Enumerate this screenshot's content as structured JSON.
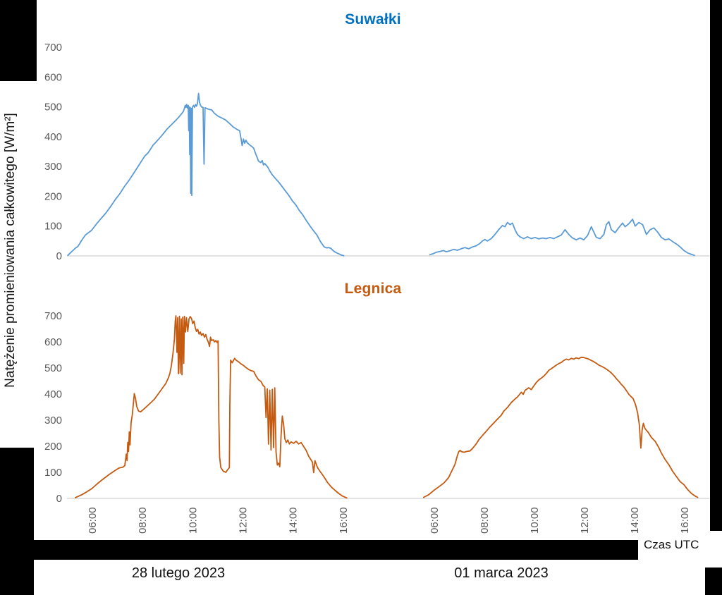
{
  "figure": {
    "ylabel": "Natężenie promieniowania całkowitego [W/m²]",
    "xlabel": "Czas UTC",
    "day_labels": {
      "left": "28 lutego 2023",
      "right": "01 marca 2023"
    },
    "colors": {
      "suwalki_title": "#0070C0",
      "suwalki_line": "#5B9BD5",
      "legnica_title": "#C55A11",
      "legnica_line": "#C55A11",
      "axis_text": "#595959",
      "baseline": "#D9D9D9"
    }
  },
  "chart_data": [
    {
      "type": "line",
      "title": "Suwałki",
      "ylabel": "Natężenie promieniowania całkowitego [W/m²]",
      "xlabel": "Czas UTC",
      "ylim": [
        0,
        700
      ],
      "y_ticks": [
        0,
        100,
        200,
        300,
        400,
        500,
        600,
        700
      ],
      "x_ticks": [
        "06:00",
        "08:00",
        "10:00",
        "12:00",
        "14:00",
        "16:00"
      ],
      "x_unit": "hours UTC",
      "grid": false,
      "legend": "none",
      "line_color": "#5B9BD5",
      "series": [
        {
          "name": "28 lutego 2023",
          "x": [
            5.05,
            5.2,
            5.35,
            5.44,
            5.5,
            5.6,
            5.75,
            6.0,
            6.2,
            6.4,
            6.56,
            6.75,
            6.95,
            7.12,
            7.3,
            7.5,
            7.69,
            7.85,
            8.0,
            8.12,
            8.25,
            8.45,
            8.6,
            8.81,
            9.0,
            9.2,
            9.37,
            9.5,
            9.65,
            9.7,
            9.73,
            9.76,
            9.79,
            9.82,
            9.85,
            9.87,
            9.89,
            9.91,
            9.93,
            9.95,
            9.97,
            9.99,
            10.02,
            10.06,
            10.1,
            10.14,
            10.18,
            10.22,
            10.26,
            10.3,
            10.34,
            10.38,
            10.44,
            10.48,
            10.52,
            10.6,
            10.7,
            10.78,
            10.9,
            11.05,
            11.2,
            11.34,
            11.5,
            11.65,
            11.78,
            11.9,
            12.0,
            12.05,
            12.1,
            12.15,
            12.2,
            12.3,
            12.4,
            12.46,
            12.55,
            12.6,
            12.65,
            12.74,
            12.8,
            12.85,
            12.9,
            13.02,
            13.1,
            13.2,
            13.3,
            13.45,
            13.58,
            13.72,
            13.86,
            14.0,
            14.14,
            14.28,
            14.42,
            14.56,
            14.7,
            14.84,
            14.98,
            15.12,
            15.26,
            15.35,
            15.45,
            15.54,
            15.62,
            15.72,
            15.82,
            15.95,
            16.05
          ],
          "y": [
            2,
            14,
            26,
            31,
            38,
            52,
            70,
            86,
            108,
            128,
            143,
            165,
            190,
            208,
            232,
            255,
            279,
            300,
            320,
            335,
            346,
            372,
            385,
            405,
            425,
            442,
            456,
            468,
            484,
            495,
            505,
            498,
            508,
            496,
            505,
            420,
            500,
            340,
            498,
            210,
            495,
            203,
            500,
            505,
            498,
            508,
            502,
            512,
            545,
            515,
            505,
            500,
            498,
            308,
            497,
            494,
            491,
            490,
            478,
            468,
            462,
            456,
            444,
            432,
            425,
            420,
            370,
            392,
            378,
            388,
            380,
            372,
            366,
            361,
            340,
            330,
            318,
            313,
            320,
            305,
            310,
            298,
            285,
            272,
            262,
            248,
            234,
            218,
            203,
            185,
            171,
            152,
            137,
            118,
            101,
            85,
            70,
            48,
            31,
            27,
            28,
            25,
            18,
            12,
            8,
            3,
            1
          ]
        },
        {
          "name": "01 marca 2023",
          "x": [
            5.85,
            6.0,
            6.1,
            6.25,
            6.4,
            6.5,
            6.65,
            6.8,
            6.95,
            7.1,
            7.25,
            7.4,
            7.55,
            7.7,
            7.85,
            7.95,
            8.05,
            8.15,
            8.3,
            8.45,
            8.6,
            8.75,
            8.85,
            8.95,
            9.05,
            9.15,
            9.25,
            9.35,
            9.45,
            9.6,
            9.75,
            9.9,
            10.05,
            10.2,
            10.35,
            10.5,
            10.65,
            10.8,
            10.95,
            11.1,
            11.25,
            11.4,
            11.55,
            11.7,
            11.85,
            12.0,
            12.15,
            12.3,
            12.4,
            12.5,
            12.65,
            12.8,
            12.9,
            13.0,
            13.1,
            13.25,
            13.4,
            13.55,
            13.65,
            13.8,
            13.95,
            14.05,
            14.2,
            14.35,
            14.5,
            14.65,
            14.8,
            14.95,
            15.1,
            15.25,
            15.4,
            15.55,
            15.7,
            15.85,
            16.0,
            16.15,
            16.3,
            16.42
          ],
          "y": [
            4,
            8,
            12,
            15,
            18,
            14,
            17,
            22,
            19,
            24,
            28,
            24,
            30,
            34,
            42,
            50,
            55,
            50,
            58,
            72,
            88,
            102,
            98,
            112,
            105,
            110,
            88,
            72,
            64,
            58,
            64,
            58,
            62,
            57,
            60,
            58,
            62,
            58,
            64,
            70,
            88,
            72,
            60,
            54,
            60,
            54,
            68,
            98,
            80,
            62,
            58,
            72,
            105,
            115,
            88,
            78,
            95,
            110,
            98,
            108,
            123,
            100,
            112,
            105,
            72,
            88,
            94,
            80,
            62,
            54,
            57,
            48,
            40,
            30,
            18,
            10,
            5,
            2
          ]
        }
      ]
    },
    {
      "type": "line",
      "title": "Legnica",
      "ylabel": "Natężenie promieniowania całkowitego [W/m²]",
      "xlabel": "Czas UTC",
      "ylim": [
        0,
        700
      ],
      "y_ticks": [
        0,
        100,
        200,
        300,
        400,
        500,
        600,
        700
      ],
      "x_ticks": [
        "06:00",
        "08:00",
        "10:00",
        "12:00",
        "14:00",
        "16:00"
      ],
      "x_unit": "hours UTC",
      "grid": false,
      "legend": "none",
      "line_color": "#C55A11",
      "series": [
        {
          "name": "28 lutego 2023",
          "x": [
            5.35,
            5.6,
            5.8,
            6.0,
            6.2,
            6.4,
            6.7,
            6.95,
            7.1,
            7.25,
            7.32,
            7.38,
            7.41,
            7.44,
            7.47,
            7.5,
            7.53,
            7.57,
            7.62,
            7.67,
            7.7,
            7.75,
            7.8,
            7.87,
            7.95,
            8.1,
            8.3,
            8.5,
            8.65,
            8.8,
            8.95,
            9.05,
            9.12,
            9.18,
            9.24,
            9.3,
            9.33,
            9.36,
            9.4,
            9.43,
            9.46,
            9.5,
            9.53,
            9.57,
            9.6,
            9.63,
            9.67,
            9.7,
            9.74,
            9.78,
            9.83,
            9.88,
            9.93,
            9.98,
            10.03,
            10.08,
            10.13,
            10.18,
            10.23,
            10.28,
            10.33,
            10.38,
            10.44,
            10.5,
            10.55,
            10.6,
            10.65,
            10.7,
            10.74,
            10.78,
            10.85,
            10.9,
            10.95,
            11.0,
            11.04,
            11.07,
            11.1,
            11.15,
            11.25,
            11.35,
            11.42,
            11.49,
            11.51,
            11.54,
            11.6,
            11.65,
            11.7,
            11.76,
            11.85,
            11.95,
            12.05,
            12.15,
            12.25,
            12.35,
            12.46,
            12.55,
            12.65,
            12.75,
            12.84,
            12.9,
            12.95,
            13.0,
            13.05,
            13.1,
            13.15,
            13.2,
            13.25,
            13.3,
            13.35,
            13.4,
            13.45,
            13.5,
            13.55,
            13.6,
            13.65,
            13.7,
            13.76,
            13.82,
            13.88,
            13.95,
            14.05,
            14.15,
            14.25,
            14.35,
            14.45,
            14.55,
            14.65,
            14.75,
            14.8,
            14.85,
            14.9,
            15.0,
            15.1,
            15.25,
            15.4,
            15.55,
            15.7,
            15.85,
            16.0,
            16.17
          ],
          "y": [
            3,
            14,
            25,
            37,
            54,
            70,
            92,
            108,
            117,
            120,
            126,
            170,
            145,
            215,
            180,
            255,
            205,
            290,
            320,
            370,
            402,
            382,
            352,
            335,
            332,
            344,
            362,
            380,
            400,
            420,
            440,
            460,
            480,
            510,
            555,
            612,
            678,
            700,
            560,
            693,
            478,
            698,
            480,
            688,
            474,
            695,
            518,
            698,
            638,
            693,
            640,
            688,
            697,
            690,
            670,
            680,
            655,
            640,
            648,
            630,
            638,
            625,
            632,
            618,
            628,
            610,
            600,
            583,
            618,
            605,
            608,
            600,
            605,
            598,
            604,
            300,
            158,
            118,
            104,
            100,
            110,
            118,
            360,
            530,
            520,
            528,
            537,
            530,
            524,
            516,
            510,
            502,
            495,
            490,
            487,
            470,
            455,
            448,
            432,
            428,
            310,
            420,
            208,
            415,
            185,
            418,
            195,
            424,
            178,
            128,
            135,
            122,
            240,
            316,
            285,
            229,
            214,
            224,
            209,
            217,
            211,
            219,
            209,
            214,
            199,
            184,
            162,
            147,
            139,
            99,
            145,
            119,
            104,
            84,
            61,
            44,
            31,
            19,
            9,
            2
          ]
        },
        {
          "name": "01 marca 2023",
          "x": [
            5.6,
            5.8,
            6.0,
            6.2,
            6.42,
            6.6,
            6.75,
            6.85,
            6.95,
            7.0,
            7.05,
            7.12,
            7.22,
            7.32,
            7.45,
            7.55,
            7.7,
            7.8,
            7.95,
            8.1,
            8.25,
            8.4,
            8.55,
            8.7,
            8.8,
            8.95,
            9.1,
            9.25,
            9.35,
            9.42,
            9.5,
            9.58,
            9.65,
            9.8,
            9.9,
            10.0,
            10.1,
            10.2,
            10.3,
            10.4,
            10.5,
            10.6,
            10.7,
            10.8,
            10.9,
            11.0,
            11.1,
            11.2,
            11.3,
            11.4,
            11.5,
            11.6,
            11.7,
            11.8,
            11.9,
            12.0,
            12.1,
            12.2,
            12.3,
            12.4,
            12.5,
            12.6,
            12.7,
            12.85,
            13.0,
            13.1,
            13.2,
            13.3,
            13.4,
            13.5,
            13.6,
            13.7,
            13.8,
            13.9,
            13.97,
            14.07,
            14.15,
            14.22,
            14.28,
            14.33,
            14.38,
            14.44,
            14.5,
            14.56,
            14.7,
            14.85,
            15.0,
            15.1,
            15.25,
            15.4,
            15.55,
            15.7,
            15.85,
            16.0,
            16.15,
            16.3,
            16.45,
            16.55
          ],
          "y": [
            4,
            14,
            30,
            44,
            60,
            80,
            110,
            130,
            164,
            178,
            184,
            179,
            177,
            180,
            182,
            191,
            209,
            224,
            241,
            257,
            274,
            289,
            304,
            319,
            334,
            349,
            367,
            381,
            389,
            397,
            407,
            399,
            414,
            424,
            417,
            431,
            444,
            454,
            461,
            469,
            479,
            491,
            497,
            504,
            511,
            517,
            521,
            529,
            534,
            531,
            537,
            534,
            539,
            536,
            541,
            540,
            537,
            534,
            529,
            524,
            518,
            511,
            507,
            499,
            489,
            481,
            471,
            459,
            449,
            437,
            427,
            414,
            399,
            389,
            383,
            358,
            328,
            281,
            193,
            262,
            288,
            269,
            261,
            255,
            234,
            219,
            194,
            174,
            149,
            129,
            104,
            84,
            64,
            53,
            34,
            19,
            9,
            4
          ]
        }
      ]
    }
  ]
}
